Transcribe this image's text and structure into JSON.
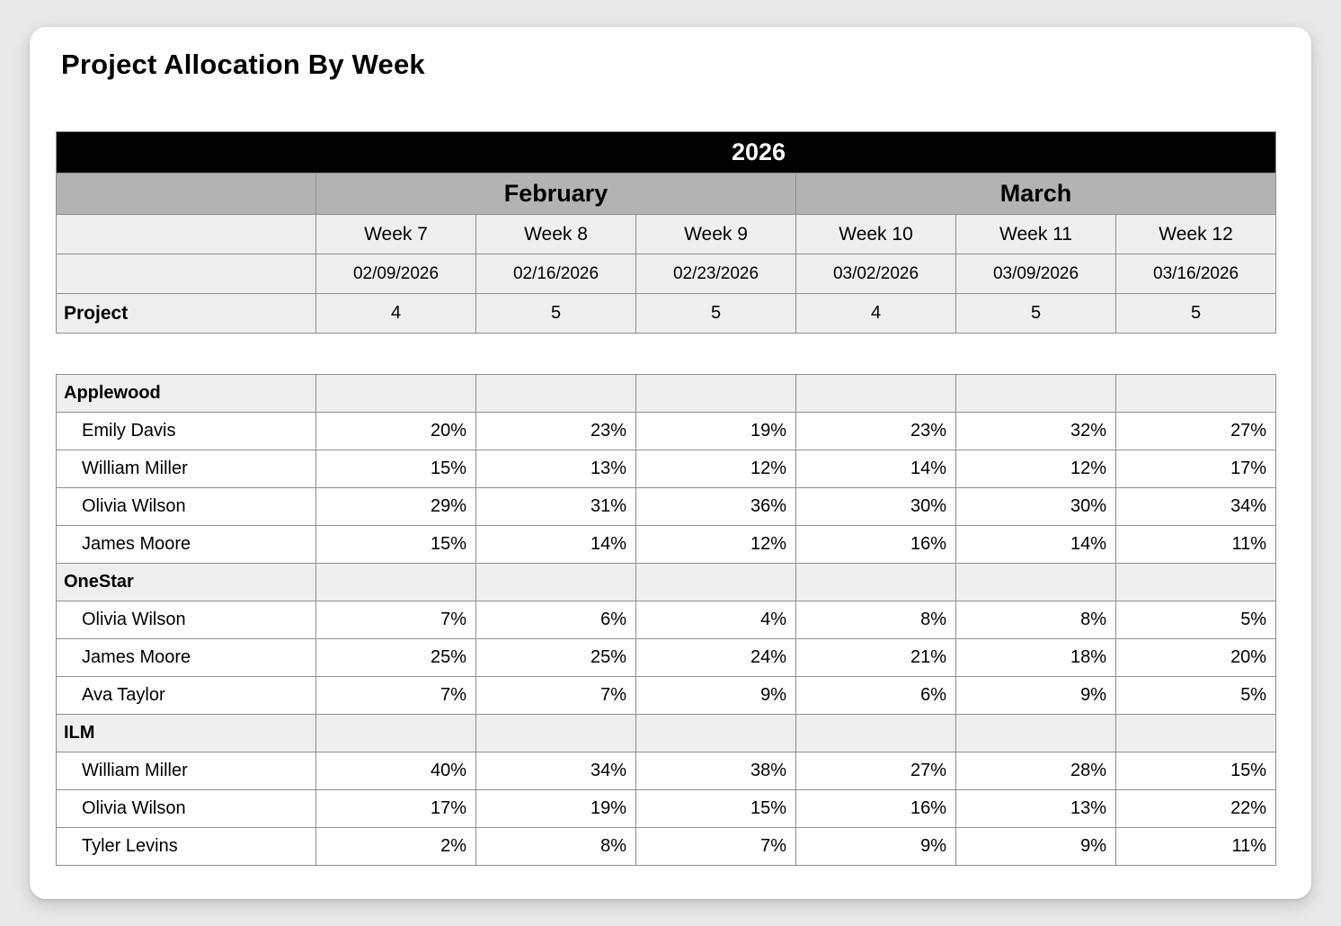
{
  "page": {
    "title": "Project Allocation By Week"
  },
  "table": {
    "year": "2026",
    "months": [
      {
        "label": "February",
        "span": 3
      },
      {
        "label": "March",
        "span": 3
      }
    ],
    "weeks": [
      "Week 7",
      "Week 8",
      "Week 9",
      "Week 10",
      "Week 11",
      "Week 12"
    ],
    "dates": [
      "02/09/2026",
      "02/16/2026",
      "02/23/2026",
      "03/02/2026",
      "03/09/2026",
      "03/16/2026"
    ],
    "project_row": {
      "label": "Project",
      "values": [
        "4",
        "5",
        "5",
        "4",
        "5",
        "5"
      ]
    },
    "groups": [
      {
        "name": "Applewood",
        "members": [
          {
            "name": "Emily Davis",
            "values": [
              "20%",
              "23%",
              "19%",
              "23%",
              "32%",
              "27%"
            ]
          },
          {
            "name": "William Miller",
            "values": [
              "15%",
              "13%",
              "12%",
              "14%",
              "12%",
              "17%"
            ]
          },
          {
            "name": "Olivia Wilson",
            "values": [
              "29%",
              "31%",
              "36%",
              "30%",
              "30%",
              "34%"
            ]
          },
          {
            "name": "James Moore",
            "values": [
              "15%",
              "14%",
              "12%",
              "16%",
              "14%",
              "11%"
            ]
          }
        ]
      },
      {
        "name": "OneStar",
        "members": [
          {
            "name": "Olivia Wilson",
            "values": [
              "7%",
              "6%",
              "4%",
              "8%",
              "8%",
              "5%"
            ]
          },
          {
            "name": "James Moore",
            "values": [
              "25%",
              "25%",
              "24%",
              "21%",
              "18%",
              "20%"
            ]
          },
          {
            "name": "Ava Taylor",
            "values": [
              "7%",
              "7%",
              "9%",
              "6%",
              "9%",
              "5%"
            ]
          }
        ]
      },
      {
        "name": "ILM",
        "members": [
          {
            "name": "William Miller",
            "values": [
              "40%",
              "34%",
              "38%",
              "27%",
              "28%",
              "15%"
            ]
          },
          {
            "name": "Olivia Wilson",
            "values": [
              "17%",
              "19%",
              "15%",
              "16%",
              "13%",
              "22%"
            ]
          },
          {
            "name": "Tyler Levins",
            "values": [
              "2%",
              "8%",
              "7%",
              "9%",
              "9%",
              "11%"
            ]
          }
        ]
      }
    ],
    "colors": {
      "year_band_bg": "#000000",
      "year_band_text": "#ffffff",
      "month_band_bg": "#b3b3b3",
      "header_row_bg": "#efefef",
      "border": "#8e8e8e"
    }
  }
}
